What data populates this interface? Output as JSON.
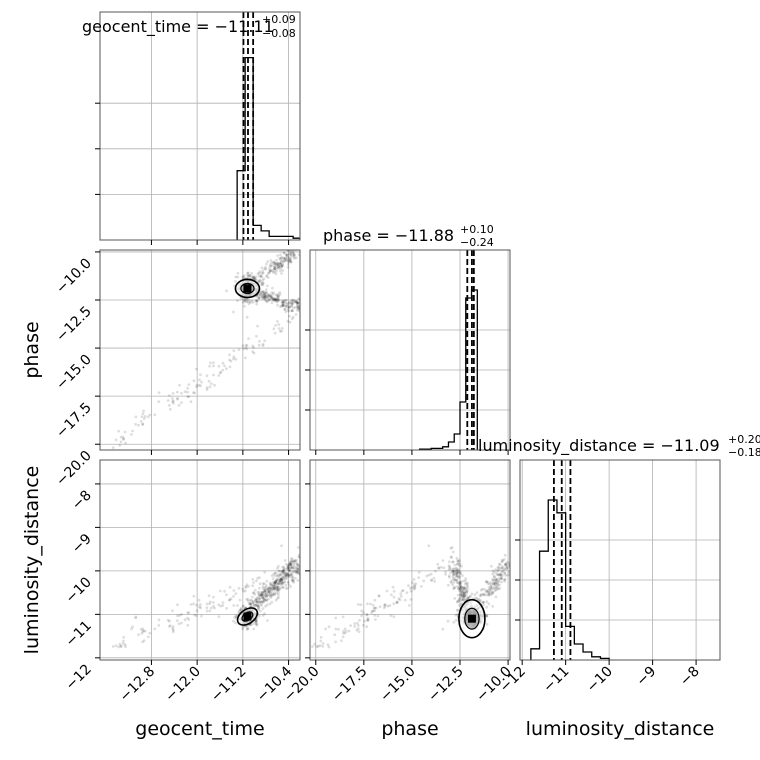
{
  "chart_data": {
    "type": "scatter",
    "subtype": "corner-plot",
    "parameters": [
      "geocent_time",
      "phase",
      "luminosity_distance"
    ],
    "axis_labels": {
      "geocent_time": "geocent_time",
      "phase": "phase",
      "luminosity_distance": "luminosity_distance"
    },
    "ranges": {
      "geocent_time": [
        -13.7,
        -10.2
      ],
      "phase": [
        -20.3,
        -9.9
      ],
      "luminosity_distance": [
        -12.05,
        -7.45
      ]
    },
    "ticks": {
      "geocent_time": [
        -12.8,
        -12.0,
        -11.2,
        -10.4
      ],
      "phase": [
        -20.0,
        -17.5,
        -15.0,
        -12.5,
        -10.0
      ],
      "luminosity_distance": [
        -12,
        -11,
        -10,
        -9,
        -8
      ]
    },
    "tick_labels": {
      "geocent_time": [
        "−12.8",
        "−12.0",
        "−11.2",
        "−10.4"
      ],
      "phase": [
        "−20.0",
        "−17.5",
        "−15.0",
        "−12.5",
        "−10.0"
      ],
      "luminosity_distance": [
        "−12",
        "−11",
        "−10",
        "−9",
        "−8"
      ]
    },
    "titles": [
      {
        "param": "geocent_time",
        "prefix": "geocent_time = −11.11",
        "plus": "+0.09",
        "minus": "−0.08"
      },
      {
        "param": "phase",
        "prefix": "phase = −11.88",
        "plus": "+0.10",
        "minus": "−0.24"
      },
      {
        "param": "luminosity_distance",
        "prefix": "luminosity_distance = −11.09",
        "plus": "+0.20",
        "minus": "−0.18"
      }
    ],
    "quantile_lines": {
      "geocent_time": [
        -11.19,
        -11.11,
        -11.02
      ],
      "phase": [
        -12.12,
        -11.88,
        -11.78
      ],
      "luminosity_distance": [
        -11.27,
        -11.09,
        -10.89
      ]
    },
    "histograms": {
      "geocent_time": {
        "edges": [
          -11.3,
          -11.16,
          -11.02,
          -10.88,
          -10.74,
          -10.6,
          -10.46,
          -10.32,
          -10.2
        ],
        "counts": [
          0.38,
          1.0,
          0.08,
          0.05,
          0.02,
          0.02,
          0.02,
          0.01
        ]
      },
      "phase": {
        "edges": [
          -14.6,
          -14.3,
          -14.0,
          -13.7,
          -13.4,
          -13.1,
          -12.8,
          -12.5,
          -12.2,
          -11.9,
          -11.6
        ],
        "counts": [
          0.005,
          0.005,
          0.01,
          0.01,
          0.02,
          0.05,
          0.1,
          0.3,
          0.95,
          1.0
        ]
      },
      "luminosity_distance": {
        "edges": [
          -11.8,
          -11.6,
          -11.4,
          -11.2,
          -11.0,
          -10.8,
          -10.6,
          -10.4,
          -10.2,
          -10.0
        ],
        "counts": [
          0.07,
          0.68,
          1.0,
          0.92,
          0.21,
          0.1,
          0.05,
          0.02,
          0.01
        ]
      }
    },
    "grid": true,
    "contour_levels": 2
  }
}
